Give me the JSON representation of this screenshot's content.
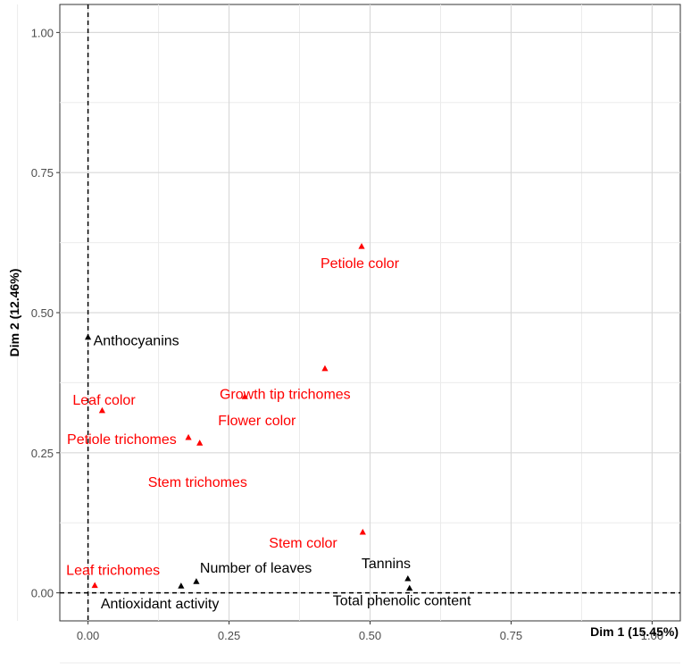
{
  "chart_data": {
    "type": "scatter",
    "title": "",
    "xlabel": "Dim 1 (15.45%)",
    "ylabel": "Dim 2 (12.46%)",
    "xlim": [
      -0.05,
      1.05
    ],
    "ylim": [
      -0.05,
      1.05
    ],
    "xticks": [
      "0.00",
      "0.25",
      "0.50",
      "0.75",
      "1.00"
    ],
    "yticks": [
      "0.00",
      "0.25",
      "0.50",
      "0.75",
      "1.00"
    ],
    "grid": true,
    "reference_lines": {
      "x": 0,
      "y": 0,
      "style": "dashed"
    },
    "colors": {
      "red": "#ff0000",
      "black": "#000000"
    },
    "points": [
      {
        "label": "Petiole color",
        "x": 0.485,
        "y": 0.618,
        "color": "red"
      },
      {
        "label": "Growth tip trichomes",
        "x": 0.42,
        "y": 0.4,
        "color": "red"
      },
      {
        "label": "Flower color",
        "x": 0.278,
        "y": 0.35,
        "color": "red"
      },
      {
        "label": "Leaf color",
        "x": 0.025,
        "y": 0.325,
        "color": "red"
      },
      {
        "label": "Petiole trichomes",
        "x": 0.178,
        "y": 0.277,
        "color": "red"
      },
      {
        "label": "Stem trichomes",
        "x": 0.198,
        "y": 0.267,
        "color": "red"
      },
      {
        "label": "Stem color",
        "x": 0.487,
        "y": 0.108,
        "color": "red"
      },
      {
        "label": "Leaf trichomes",
        "x": 0.012,
        "y": 0.013,
        "color": "red"
      },
      {
        "label": "Anthocyanins",
        "x": 0.0,
        "y": 0.456,
        "color": "black"
      },
      {
        "label": "Number of leaves",
        "x": 0.192,
        "y": 0.02,
        "color": "black"
      },
      {
        "label": "Antioxidant activity",
        "x": 0.165,
        "y": 0.012,
        "color": "black"
      },
      {
        "label": "Tannins",
        "x": 0.567,
        "y": 0.025,
        "color": "black"
      },
      {
        "label": "Total phenolic content",
        "x": 0.57,
        "y": 0.008,
        "color": "black"
      }
    ]
  }
}
